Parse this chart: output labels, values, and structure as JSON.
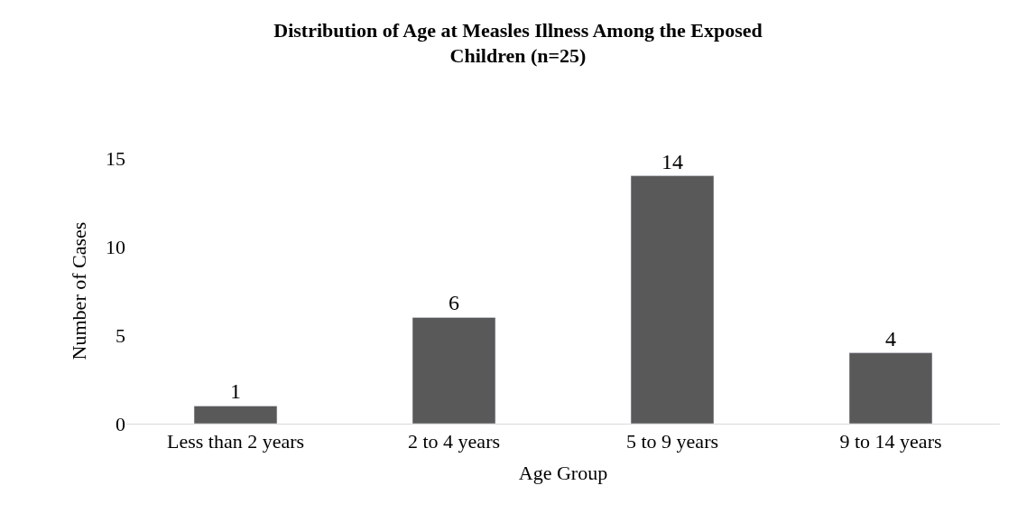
{
  "chart_data": {
    "type": "bar",
    "title": "Distribution of Age at Measles Illness Among the Exposed Children (n=25)",
    "xlabel": "Age Group",
    "ylabel": "Number of Cases",
    "categories": [
      "Less than 2 years",
      "2 to 4 years",
      "5 to 9 years",
      "9 to 14 years"
    ],
    "values": [
      1,
      6,
      14,
      4
    ],
    "color": "#595959",
    "data_labels": true,
    "ylim": [
      0,
      15
    ],
    "yticks": [
      0,
      5,
      10,
      15
    ],
    "legend": false
  }
}
